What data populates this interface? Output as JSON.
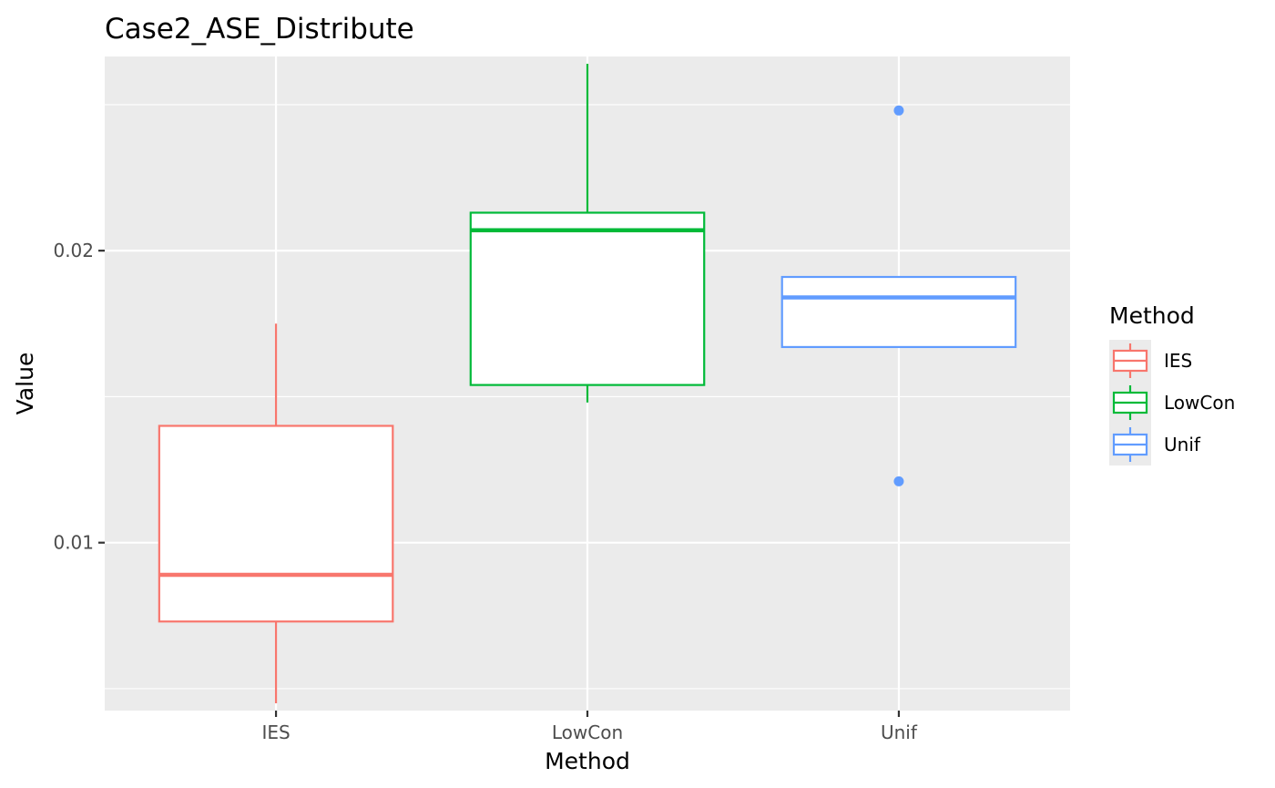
{
  "chart_data": {
    "type": "boxplot",
    "title": "Case2_ASE_Distribute",
    "xlabel": "Method",
    "ylabel": "Value",
    "categories": [
      "IES",
      "LowCon",
      "Unif"
    ],
    "ylim": [
      0.00425,
      0.02665
    ],
    "yticks": [
      0.01,
      0.02
    ],
    "ytick_labels": [
      "0.01",
      "0.02"
    ],
    "grid": true,
    "legend": {
      "title": "Method",
      "position": "right",
      "entries": [
        "IES",
        "LowCon",
        "Unif"
      ]
    },
    "colors": {
      "IES": "#F8766D",
      "LowCon": "#00BA38",
      "Unif": "#619CFF",
      "panel": "#EBEBEB",
      "grid": "#FFFFFF"
    },
    "boxes": [
      {
        "name": "IES",
        "min": 0.0045,
        "q1": 0.0073,
        "median": 0.0089,
        "q3": 0.014,
        "max": 0.0175,
        "outliers": []
      },
      {
        "name": "LowCon",
        "min": 0.0148,
        "q1": 0.0154,
        "median": 0.0207,
        "q3": 0.0213,
        "max": 0.0264,
        "outliers": []
      },
      {
        "name": "Unif",
        "min": 0.0167,
        "q1": 0.0167,
        "median": 0.0184,
        "q3": 0.0191,
        "max": 0.0191,
        "outliers": [
          0.0248,
          0.0121
        ]
      }
    ]
  }
}
